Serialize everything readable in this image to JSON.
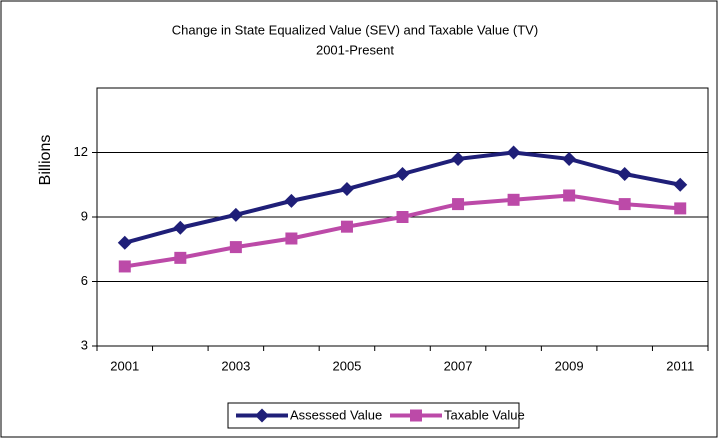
{
  "chart_data": {
    "type": "line",
    "title": "Change in State Equalized Value (SEV) and Taxable Value (TV)",
    "subtitle": "2001-Present",
    "y_label": "Billions",
    "categories": [
      "2001",
      null,
      "2003",
      null,
      "2005",
      null,
      "2007",
      null,
      "2009",
      null,
      "2011"
    ],
    "series": [
      {
        "name": "Assessed Value",
        "color": "#1f1f78",
        "marker": "diamond",
        "values": [
          7.8,
          8.5,
          9.1,
          9.75,
          10.3,
          11.0,
          11.7,
          12.0,
          11.7,
          11.0,
          10.5
        ]
      },
      {
        "name": "Taxable Value",
        "color": "#bc4aa8",
        "marker": "square",
        "values": [
          6.7,
          7.1,
          7.6,
          8.0,
          8.55,
          9.0,
          9.6,
          9.8,
          10.0,
          9.6,
          9.4
        ]
      }
    ],
    "ylim": [
      3,
      15
    ],
    "yticks": [
      3,
      6,
      9,
      12
    ],
    "grid": true,
    "legend": "bottom"
  }
}
